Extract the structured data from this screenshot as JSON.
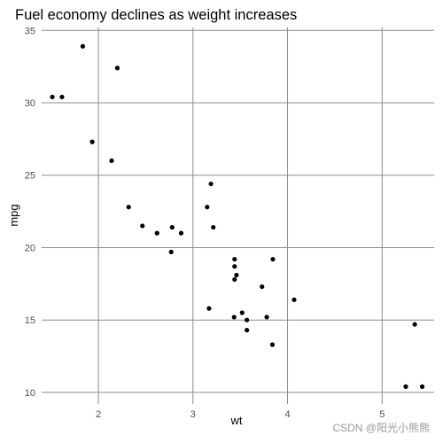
{
  "chart_data": {
    "type": "scatter",
    "title": "Fuel economy declines as weight increases",
    "xlabel": "wt",
    "ylabel": "mpg",
    "xlim": [
      1.4,
      5.55
    ],
    "ylim": [
      9.2,
      35.2
    ],
    "xticks": [
      2,
      3,
      4,
      5
    ],
    "yticks": [
      10,
      15,
      20,
      25,
      30,
      35
    ],
    "grid": true,
    "legend": "none",
    "point_color": "#000000",
    "grid_color": "#8c8c8c",
    "x": [
      2.62,
      2.875,
      2.32,
      3.215,
      3.44,
      3.46,
      3.57,
      3.19,
      3.15,
      3.44,
      3.44,
      4.07,
      3.73,
      3.78,
      5.25,
      5.424,
      5.345,
      2.2,
      1.615,
      1.835,
      2.465,
      3.52,
      3.435,
      3.84,
      3.845,
      1.935,
      2.14,
      1.513,
      3.17,
      2.77,
      3.57,
      2.78
    ],
    "y": [
      21.0,
      21.0,
      22.8,
      21.4,
      18.7,
      18.1,
      14.3,
      24.4,
      22.8,
      19.2,
      17.8,
      16.4,
      17.3,
      15.2,
      10.4,
      10.4,
      14.7,
      32.4,
      30.4,
      33.9,
      21.5,
      15.5,
      15.2,
      13.3,
      19.2,
      27.3,
      26.0,
      30.4,
      15.8,
      19.7,
      15.0,
      21.4
    ]
  },
  "watermark": "CSDN @阳光小熊熊"
}
